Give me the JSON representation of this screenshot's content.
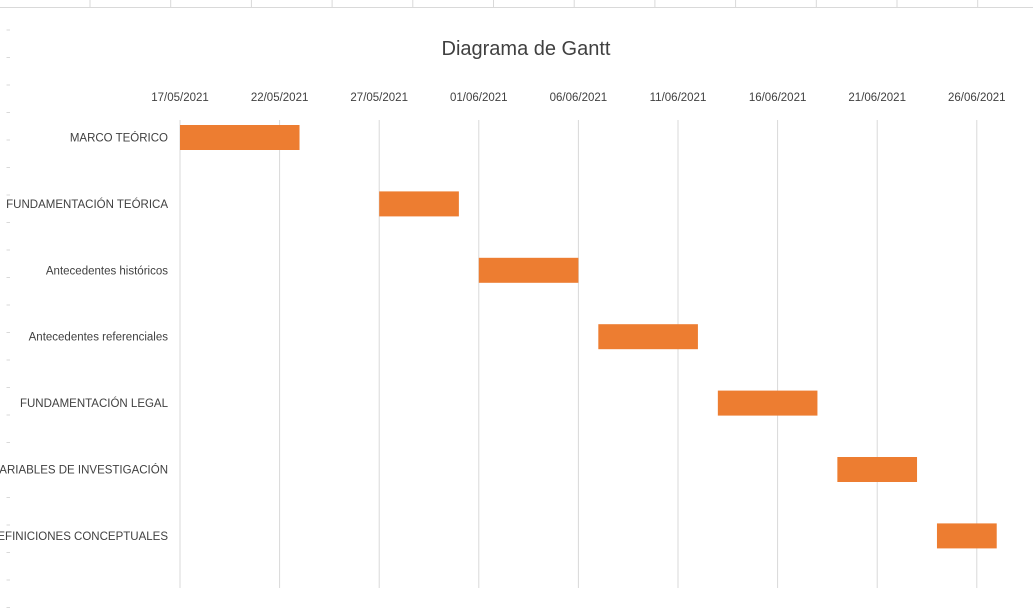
{
  "chart_data": {
    "type": "bar",
    "subtype": "gantt",
    "title": "Diagrama de Gantt",
    "xlabel": "",
    "ylabel": "",
    "x_axis_position": "top",
    "grid": true,
    "legend": "none",
    "bar_color": "#ed7d31",
    "grid_color": "#d9d9d9",
    "text_color": "#404040",
    "xlim": [
      "2021-05-17",
      "2021-06-28"
    ],
    "x_ticks": [
      "17/05/2021",
      "22/05/2021",
      "27/05/2021",
      "01/06/2021",
      "06/06/2021",
      "11/06/2021",
      "16/06/2021",
      "21/06/2021",
      "26/06/2021"
    ],
    "categories": [
      "MARCO TEÓRICO",
      "FUNDAMENTACIÓN TEÓRICA",
      "Antecedentes históricos",
      "Antecedentes referenciales",
      "FUNDAMENTACIÓN LEGAL",
      "VARIABLES DE INVESTIGACIÓN",
      "DEFINICIONES CONCEPTUALES"
    ],
    "tasks": [
      {
        "name": "MARCO TEÓRICO",
        "start": "2021-05-17",
        "end": "2021-05-23"
      },
      {
        "name": "FUNDAMENTACIÓN TEÓRICA",
        "start": "2021-05-27",
        "end": "2021-05-31"
      },
      {
        "name": "Antecedentes históricos",
        "start": "2021-06-01",
        "end": "2021-06-06"
      },
      {
        "name": "Antecedentes referenciales",
        "start": "2021-06-07",
        "end": "2021-06-12"
      },
      {
        "name": "FUNDAMENTACIÓN LEGAL",
        "start": "2021-06-13",
        "end": "2021-06-18"
      },
      {
        "name": "VARIABLES DE INVESTIGACIÓN",
        "start": "2021-06-19",
        "end": "2021-06-23"
      },
      {
        "name": "DEFINICIONES CONCEPTUALES",
        "start": "2021-06-24",
        "end": "2021-06-27"
      }
    ]
  }
}
